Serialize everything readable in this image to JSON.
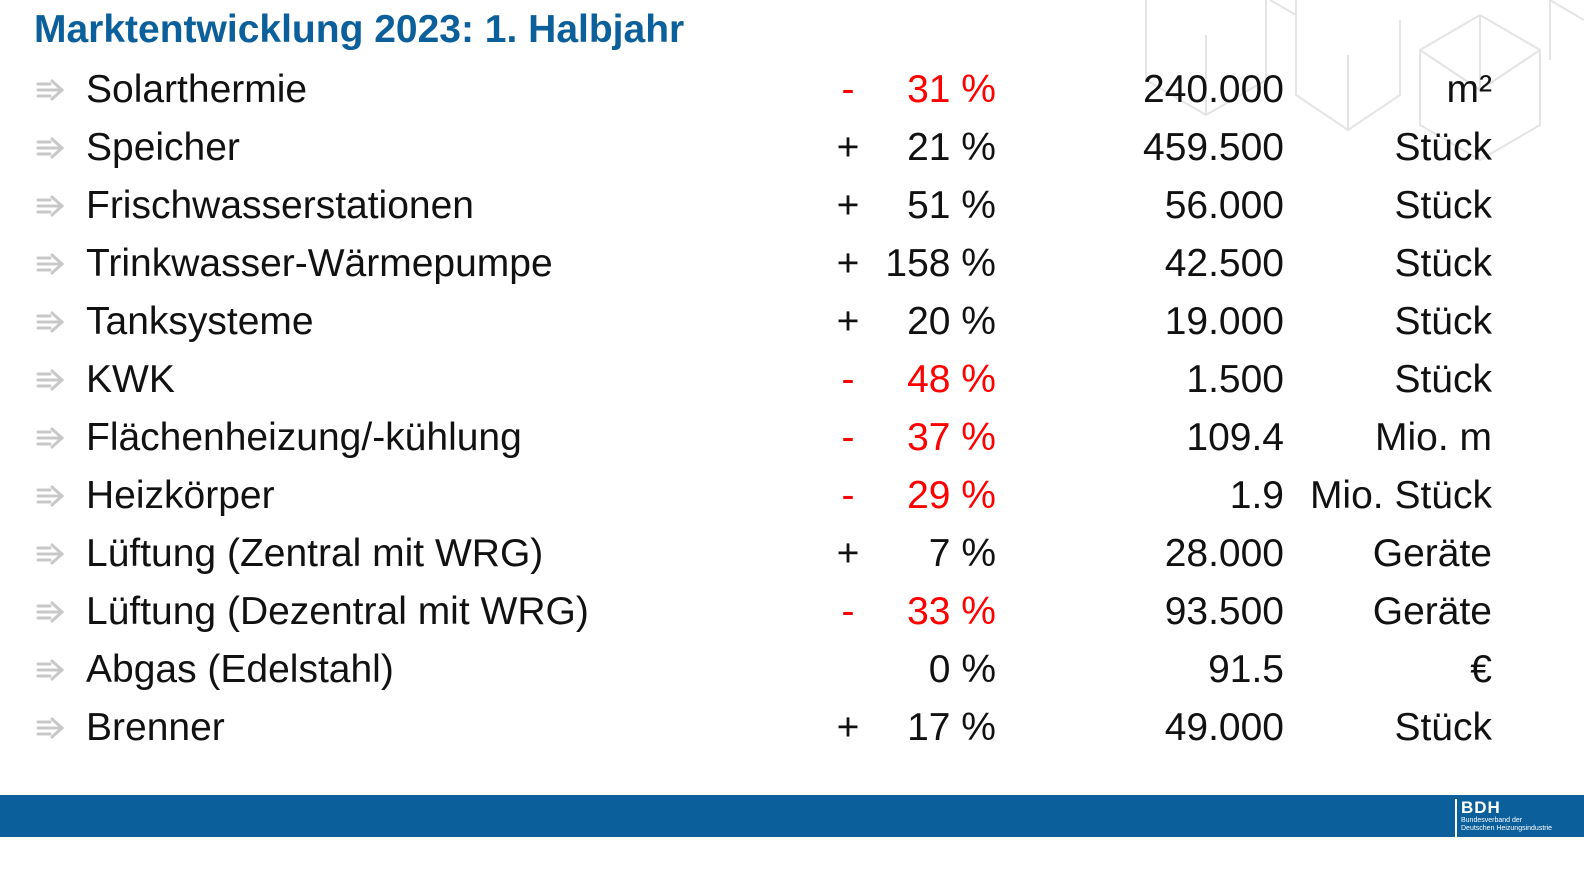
{
  "title": "Marktentwicklung 2023: 1. Halbjahr",
  "rows": [
    {
      "label": "Solarthermie",
      "sign": "-",
      "percent": "31 %",
      "negative": true,
      "value": "240.000",
      "unit": "m²"
    },
    {
      "label": "Speicher",
      "sign": "+",
      "percent": "21 %",
      "negative": false,
      "value": "459.500",
      "unit": "Stück"
    },
    {
      "label": "Frischwasserstationen",
      "sign": "+",
      "percent": "51 %",
      "negative": false,
      "value": "56.000",
      "unit": "Stück"
    },
    {
      "label": "Trinkwasser-Wärmepumpe",
      "sign": "+",
      "percent": "158 %",
      "negative": false,
      "value": "42.500",
      "unit": "Stück"
    },
    {
      "label": "Tanksysteme",
      "sign": "+",
      "percent": "20 %",
      "negative": false,
      "value": "19.000",
      "unit": "Stück"
    },
    {
      "label": "KWK",
      "sign": "-",
      "percent": "48 %",
      "negative": true,
      "value": "1.500",
      "unit": "Stück"
    },
    {
      "label": "Flächenheizung/-kühlung",
      "sign": "-",
      "percent": "37 %",
      "negative": true,
      "value": "109.4",
      "unit": "Mio. m"
    },
    {
      "label": "Heizkörper",
      "sign": "-",
      "percent": "29 %",
      "negative": true,
      "value": "1.9",
      "unit": "Mio. Stück"
    },
    {
      "label": "Lüftung (Zentral mit WRG)",
      "sign": "+",
      "percent": "7 %",
      "negative": false,
      "value": "28.000",
      "unit": "Geräte"
    },
    {
      "label": "Lüftung (Dezentral mit WRG)",
      "sign": "-",
      "percent": "33 %",
      "negative": true,
      "value": "93.500",
      "unit": "Geräte"
    },
    {
      "label": "Abgas (Edelstahl)",
      "sign": "",
      "percent": "0 %",
      "negative": false,
      "value": "91.5",
      "unit": "€"
    },
    {
      "label": "Brenner",
      "sign": "+",
      "percent": "17 %",
      "negative": false,
      "value": "49.000",
      "unit": "Stück"
    }
  ],
  "colors": {
    "accent": "#0b5f9a",
    "negative": "#ff0000",
    "text": "#111111",
    "bullet": "#c8c8c8"
  },
  "logo": {
    "name": "BDH",
    "subline1": "Bundesverband der",
    "subline2": "Deutschen Heizungsindustrie"
  }
}
